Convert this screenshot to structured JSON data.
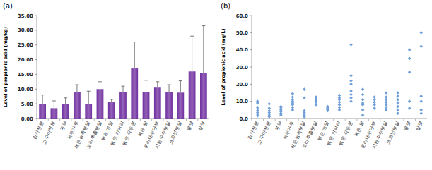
{
  "chart_data": [
    {
      "type": "bar",
      "title": "(a)",
      "y_label": "Level of propionic acid (mg/kg)",
      "categories": [
        "감자전분",
        "고구마전분",
        "곤약",
        "녹두가루",
        "레몬농축분말",
        "보리추출분말",
        "볶은 메밀",
        "볶은 치커리",
        "볶은 작두콩",
        "볶은 팥",
        "분리대두단백",
        "시판수수분말",
        "코코넛분말",
        "물엿",
        "쌀엿"
      ],
      "values": [
        5.0,
        3.5,
        5.0,
        9.0,
        4.8,
        10.0,
        5.5,
        9.0,
        17.0,
        9.0,
        10.5,
        9.0,
        8.8,
        16.0,
        15.5
      ],
      "errors": [
        3.0,
        2.5,
        2.0,
        2.5,
        4.5,
        2.5,
        1.0,
        2.0,
        9.0,
        4.0,
        2.0,
        2.5,
        4.0,
        12.0,
        16.0
      ],
      "color": "#7030a0",
      "ylim": [
        0,
        35
      ],
      "yticks": [
        {
          "value": 0,
          "label": "0.00"
        },
        {
          "value": 5,
          "label": "5.00"
        },
        {
          "value": 10,
          "label": "10.00"
        },
        {
          "value": 15,
          "label": "15.00"
        },
        {
          "value": 20,
          "label": "20.00"
        },
        {
          "value": 25,
          "label": "25.00"
        },
        {
          "value": 30,
          "label": "30.00"
        },
        {
          "value": 35,
          "label": "35.00"
        }
      ],
      "grid": false
    },
    {
      "type": "scatter",
      "title": "(b)",
      "y_label": "Level of propionic acid (mg/L)",
      "categories": [
        "감자전분",
        "고구마전분",
        "곤약",
        "녹두가루",
        "레몬농축분말",
        "보리추출분말",
        "볶은 메밀",
        "볶은 치커리",
        "볶은 작두콩",
        "볶은 팥",
        "분리대두단백",
        "시판수수분말",
        "코코넛분말",
        "물엿",
        "쌀엿"
      ],
      "values": [
        [
          1.5,
          2.5,
          3.5,
          4.5,
          5.5,
          6.5,
          9,
          10
        ],
        [
          1,
          1.5,
          2.5,
          3.5,
          4.5,
          6,
          8.5
        ],
        [
          2,
          3,
          4,
          5,
          5.5,
          6.5,
          7
        ],
        [
          5,
          6.5,
          8,
          9,
          10,
          11,
          12.5,
          14.5
        ],
        [
          1,
          1.5,
          2.5,
          3.5,
          4.5,
          12,
          17
        ],
        [
          8,
          9.5,
          10.5,
          11.5,
          12.5
        ],
        [
          4.5,
          5,
          5.5,
          6,
          6.5,
          7
        ],
        [
          5,
          6.5,
          8,
          9.5,
          11,
          12,
          13.5
        ],
        [
          10,
          12,
          14,
          16,
          20,
          22,
          25,
          43
        ],
        [
          2,
          5,
          8,
          9,
          11,
          14,
          17
        ],
        [
          6,
          8,
          9.5,
          11,
          12.5
        ],
        [
          5,
          6.5,
          8,
          9.5,
          11,
          12.5,
          15
        ],
        [
          3,
          5,
          7,
          9,
          11,
          13,
          15
        ],
        [
          6,
          10,
          27,
          35,
          40
        ],
        [
          3,
          5,
          10,
          13,
          42,
          50
        ]
      ],
      "color": "#6f9fd8",
      "marker": "diamond",
      "ylim": [
        0,
        60
      ],
      "yticks": [
        {
          "value": 0,
          "label": "0.0"
        },
        {
          "value": 10,
          "label": "10.0"
        },
        {
          "value": 20,
          "label": "20.0"
        },
        {
          "value": 30,
          "label": "30.0"
        },
        {
          "value": 40,
          "label": "40.0"
        },
        {
          "value": 50,
          "label": "50.0"
        },
        {
          "value": 60,
          "label": "60.0"
        }
      ],
      "grid": false
    }
  ]
}
